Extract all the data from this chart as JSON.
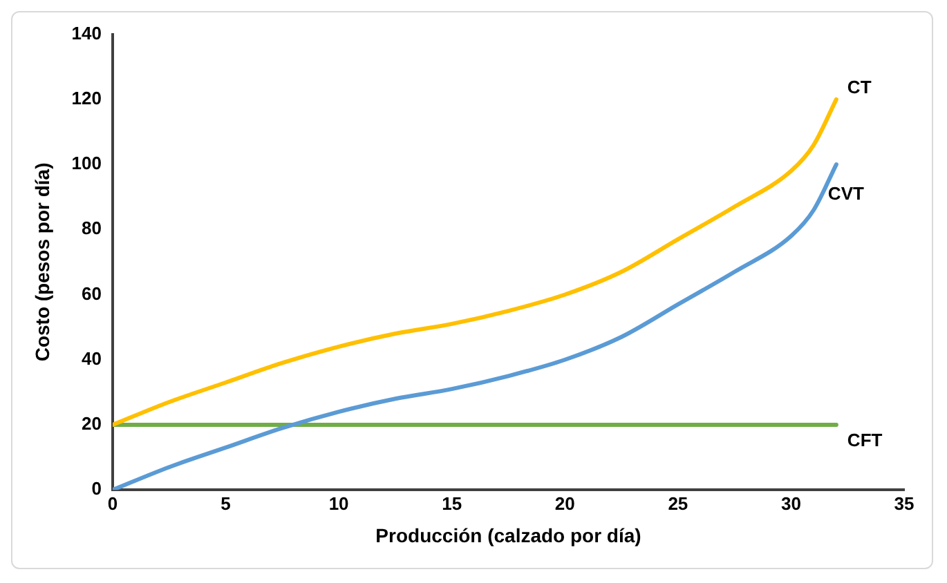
{
  "chart_data": {
    "type": "line",
    "xlabel": "Producción (calzado por día)",
    "ylabel": "Costo (pesos por día)",
    "xlim": [
      0,
      35
    ],
    "xticks": [
      0,
      5,
      10,
      15,
      20,
      25,
      30,
      35
    ],
    "ylim": [
      0,
      140
    ],
    "yticks": [
      0,
      20,
      40,
      60,
      80,
      100,
      120,
      140
    ],
    "grid": false,
    "legend": false,
    "marker": "none",
    "line_style": "solid",
    "series": [
      {
        "name": "CT",
        "color": "#ffc000",
        "x": [
          0,
          2.5,
          5,
          7.5,
          10,
          12.5,
          15,
          17.5,
          20,
          22.5,
          25,
          27.5,
          30,
          31,
          32
        ],
        "values": [
          20,
          27,
          33,
          39,
          44,
          48,
          51,
          55,
          60,
          67,
          77,
          87,
          98,
          106,
          120
        ]
      },
      {
        "name": "CVT",
        "color": "#5b9bd5",
        "x": [
          0,
          2.5,
          5,
          7.5,
          10,
          12.5,
          15,
          17.5,
          20,
          22.5,
          25,
          27.5,
          30,
          31,
          32
        ],
        "values": [
          0,
          7,
          13,
          19,
          24,
          28,
          31,
          35,
          40,
          47,
          57,
          67,
          78,
          86,
          100
        ]
      },
      {
        "name": "CFT",
        "color": "#70ad47",
        "x": [
          0,
          32
        ],
        "values": [
          20,
          20
        ]
      }
    ]
  }
}
